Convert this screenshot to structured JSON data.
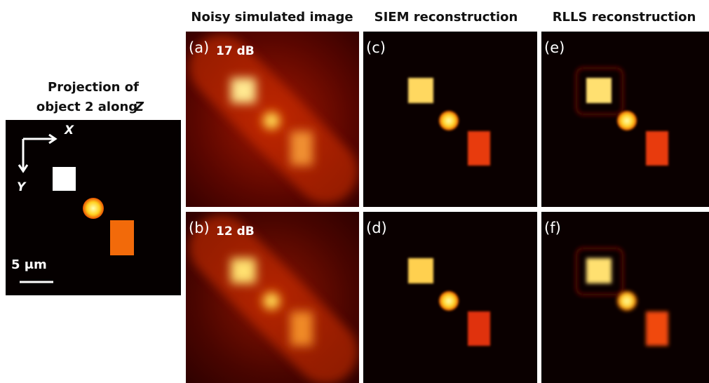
{
  "headers": [
    "Noisy simulated image",
    "SIEM  reconstruction",
    "RLLS  reconstruction"
  ],
  "projection": {
    "title_line1": "Projection of",
    "title_line2": "object 2 along",
    "title_axis": "Z",
    "x_axis": "X",
    "y_axis": "Y",
    "scale_bar": "5 μm"
  },
  "panels": [
    {
      "label": "(a)",
      "snr": "17 dB"
    },
    {
      "label": "(b)",
      "snr": "12 dB"
    },
    {
      "label": "(c)"
    },
    {
      "label": "(d)"
    },
    {
      "label": "(e)"
    },
    {
      "label": "(f)"
    }
  ]
}
